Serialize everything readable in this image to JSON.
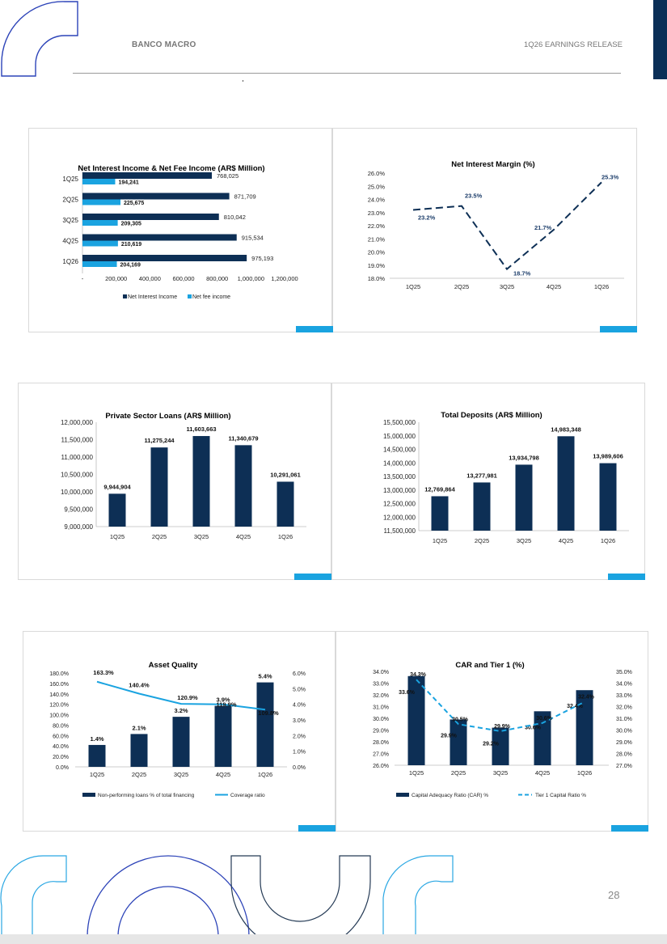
{
  "header": {
    "company": "BANCO MACRO",
    "report": "1Q26 EARNINGS RELEASE"
  },
  "page_number": "28",
  "colors": {
    "navy": "#0d2f55",
    "cyan": "#1aa3e0",
    "ring_blue": "#2c43b8",
    "ring_cyan": "#2aa7e3"
  },
  "chart_data": [
    {
      "type": "bar",
      "orientation": "horizontal",
      "title": "Net Interest Income & Net Fee Income (AR$ Million)",
      "categories": [
        "1Q25",
        "2Q25",
        "3Q25",
        "4Q25",
        "1Q26"
      ],
      "series": [
        {
          "name": "Net Interest Income",
          "values": [
            768025,
            871709,
            810042,
            915534,
            975193
          ],
          "labels": [
            "768,025",
            "871,709",
            "810,042",
            "915,534",
            "975,193"
          ],
          "color": "#0d2f55"
        },
        {
          "name": "Net fee income",
          "values": [
            194241,
            225675,
            209305,
            210619,
            204169
          ],
          "labels": [
            "194,241",
            "225,675",
            "209,305",
            "210,619",
            "204,169"
          ],
          "color": "#1aa3e0"
        }
      ],
      "xlim": [
        0,
        1200000
      ],
      "xticks": [
        "-",
        "200,000",
        "400,000",
        "600,000",
        "800,000",
        "1,000,000",
        "1,200,000"
      ],
      "legend": "bottom"
    },
    {
      "type": "line",
      "title": "Net Interest Margin (%)",
      "categories": [
        "1Q25",
        "2Q25",
        "3Q25",
        "4Q25",
        "1Q26"
      ],
      "series": [
        {
          "values": [
            23.2,
            23.5,
            18.7,
            21.7,
            25.3
          ],
          "labels": [
            "23.2%",
            "23.5%",
            "18.7%",
            "21.7%",
            "25.3%"
          ],
          "style": "dashed",
          "color": "#0d2f55"
        }
      ],
      "ylim": [
        18,
        26
      ],
      "yticks": [
        "18.0%",
        "19.0%",
        "20.0%",
        "21.0%",
        "22.0%",
        "23.0%",
        "24.0%",
        "25.0%",
        "26.0%"
      ]
    },
    {
      "type": "bar",
      "title": "Private Sector Loans (AR$ Million)",
      "categories": [
        "1Q25",
        "2Q25",
        "3Q25",
        "4Q25",
        "1Q26"
      ],
      "values": [
        9944904,
        11275244,
        11603663,
        11340679,
        10291061
      ],
      "labels": [
        "9,944,904",
        "11,275,244",
        "11,603,663",
        "11,340,679",
        "10,291,061"
      ],
      "ylim": [
        9000000,
        12000000
      ],
      "yticks": [
        "9,000,000",
        "9,500,000",
        "10,000,000",
        "10,500,000",
        "11,000,000",
        "11,500,000",
        "12,000,000"
      ]
    },
    {
      "type": "bar",
      "title": "Total Deposits (AR$ Million)",
      "categories": [
        "1Q25",
        "2Q25",
        "3Q25",
        "4Q25",
        "1Q26"
      ],
      "values": [
        12769864,
        13277981,
        13934798,
        14983348,
        13989606
      ],
      "labels": [
        "12,769,864",
        "13,277,981",
        "13,934,798",
        "14,983,348",
        "13,989,606"
      ],
      "ylim": [
        11500000,
        15500000
      ],
      "yticks": [
        "11,500,000",
        "12,000,000",
        "12,500,000",
        "13,000,000",
        "13,500,000",
        "14,000,000",
        "14,500,000",
        "15,000,000",
        "15,500,000"
      ]
    },
    {
      "type": "bar+line",
      "title": "Asset Quality",
      "categories": [
        "1Q25",
        "2Q25",
        "3Q25",
        "4Q25",
        "1Q26"
      ],
      "series": [
        {
          "name": "Non-performing loans % of total financing",
          "type": "bar",
          "axis": "right",
          "values": [
            1.4,
            2.1,
            3.2,
            3.9,
            5.4
          ],
          "labels": [
            "1.4%",
            "2.1%",
            "3.2%",
            "3.9%",
            "5.4%"
          ]
        },
        {
          "name": "Coverage ratio",
          "type": "line",
          "axis": "left",
          "values": [
            163.3,
            140.4,
            120.9,
            119.9,
            109.8
          ],
          "labels": [
            "163.3%",
            "140.4%",
            "120.9%",
            "119.9%",
            "109.8%"
          ]
        }
      ],
      "ylim_left": [
        0,
        180
      ],
      "yticks_left": [
        "0.0%",
        "20.0%",
        "40.0%",
        "60.0%",
        "80.0%",
        "100.0%",
        "120.0%",
        "140.0%",
        "160.0%",
        "180.0%"
      ],
      "ylim_right": [
        0,
        6
      ],
      "yticks_right": [
        "0.0%",
        "1.0%",
        "2.0%",
        "3.0%",
        "4.0%",
        "5.0%",
        "6.0%"
      ],
      "legend": "bottom"
    },
    {
      "type": "bar+line",
      "title": "CAR and Tier 1 (%)",
      "categories": [
        "1Q25",
        "2Q25",
        "3Q25",
        "4Q25",
        "1Q26"
      ],
      "series": [
        {
          "name": "Capital Adequacy Ratio (CAR) %",
          "type": "bar",
          "axis": "left",
          "values": [
            33.6,
            29.9,
            29.2,
            30.6,
            32.4
          ],
          "labels": [
            "33.6%",
            "29.9%",
            "29.2%",
            "30.6%",
            "32.4%"
          ]
        },
        {
          "name": "Tier 1 Capital Ratio %",
          "type": "line",
          "style": "dashed",
          "axis": "right",
          "values": [
            34.3,
            30.5,
            29.9,
            30.6,
            32.4
          ],
          "labels": [
            "34.3%",
            "30.5%",
            "29.9%",
            "30.6%",
            "32.4%"
          ]
        }
      ],
      "ylim_left": [
        26,
        34
      ],
      "yticks_left": [
        "26.0%",
        "27.0%",
        "28.0%",
        "29.0%",
        "30.0%",
        "31.0%",
        "32.0%",
        "33.0%",
        "34.0%"
      ],
      "ylim_right": [
        27,
        35
      ],
      "yticks_right": [
        "27.0%",
        "28.0%",
        "29.0%",
        "30.0%",
        "31.0%",
        "32.0%",
        "33.0%",
        "34.0%",
        "35.0%"
      ],
      "legend": "bottom"
    }
  ]
}
